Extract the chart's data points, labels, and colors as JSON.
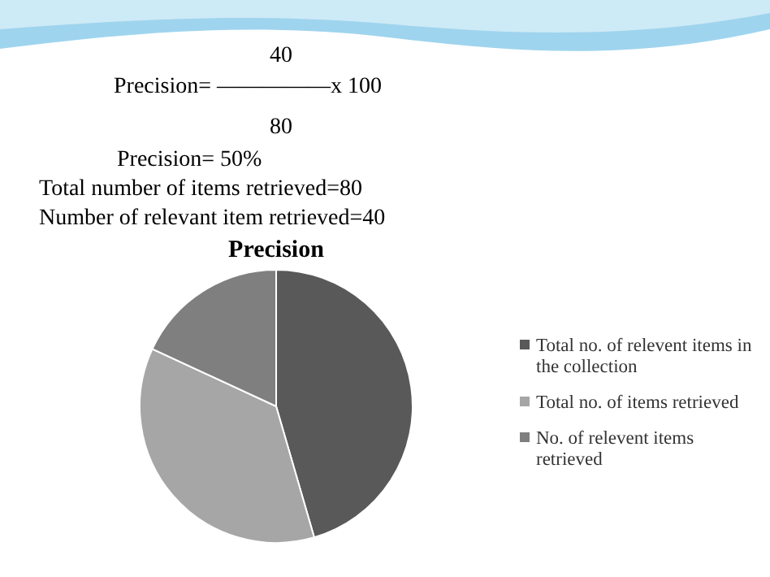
{
  "chart_data": {
    "type": "pie",
    "title": "Precision",
    "categories": [
      "Total no. of relevent items in the collection",
      "Total no. of items retrieved",
      "No. of relevent items retrieved"
    ],
    "values": [
      45.5,
      36.4,
      18.1
    ],
    "colors": [
      "#595959",
      "#a6a6a6",
      "#7f7f7f"
    ],
    "legend": "right",
    "annotations": [
      "40",
      "Precision= —————x 100",
      "80",
      "Precision= 50%",
      "Total number of items retrieved=80",
      "Number of relevant item retrieved=40"
    ]
  }
}
